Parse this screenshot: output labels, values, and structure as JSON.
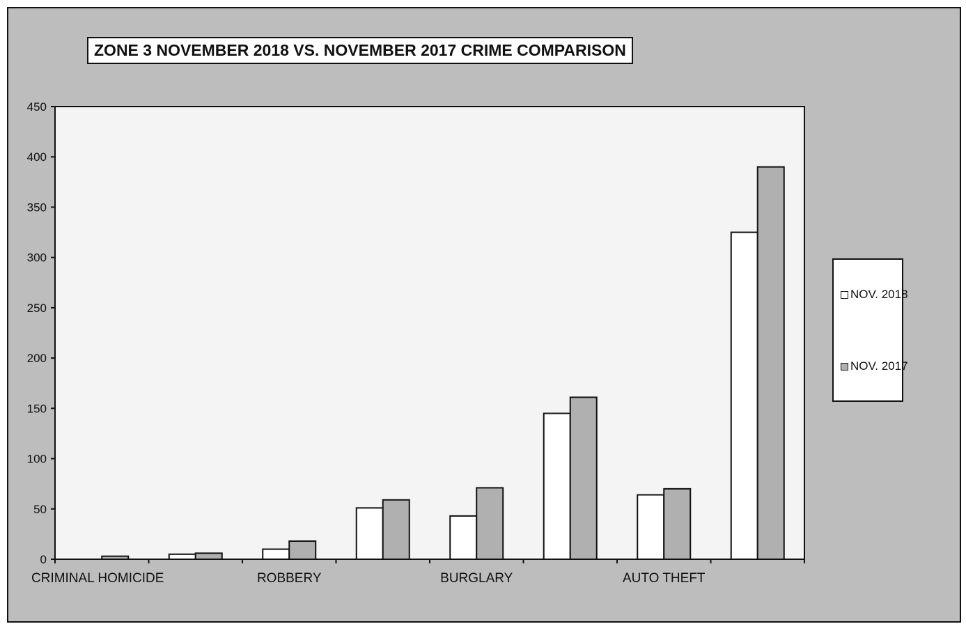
{
  "chart_data": {
    "type": "bar",
    "title": "ZONE 3  NOVEMBER 2018 VS. NOVEMBER 2017 CRIME COMPARISON",
    "xlabel": "",
    "ylabel": "",
    "ylim": [
      0,
      450
    ],
    "yticks": [
      0,
      50,
      100,
      150,
      200,
      250,
      300,
      350,
      400,
      450
    ],
    "categories": [
      "CRIMINAL HOMICIDE",
      "",
      "ROBBERY",
      "",
      "BURGLARY",
      "",
      "AUTO THEFT",
      ""
    ],
    "series": [
      {
        "name": "NOV. 2018",
        "color": "#ffffff",
        "values": [
          0,
          5,
          10,
          51,
          43,
          145,
          64,
          325
        ]
      },
      {
        "name": "NOV. 2017",
        "color": "#b0b0b0",
        "values": [
          3,
          6,
          18,
          59,
          71,
          161,
          70,
          390
        ]
      }
    ],
    "grid": false,
    "legend_position": "right"
  }
}
